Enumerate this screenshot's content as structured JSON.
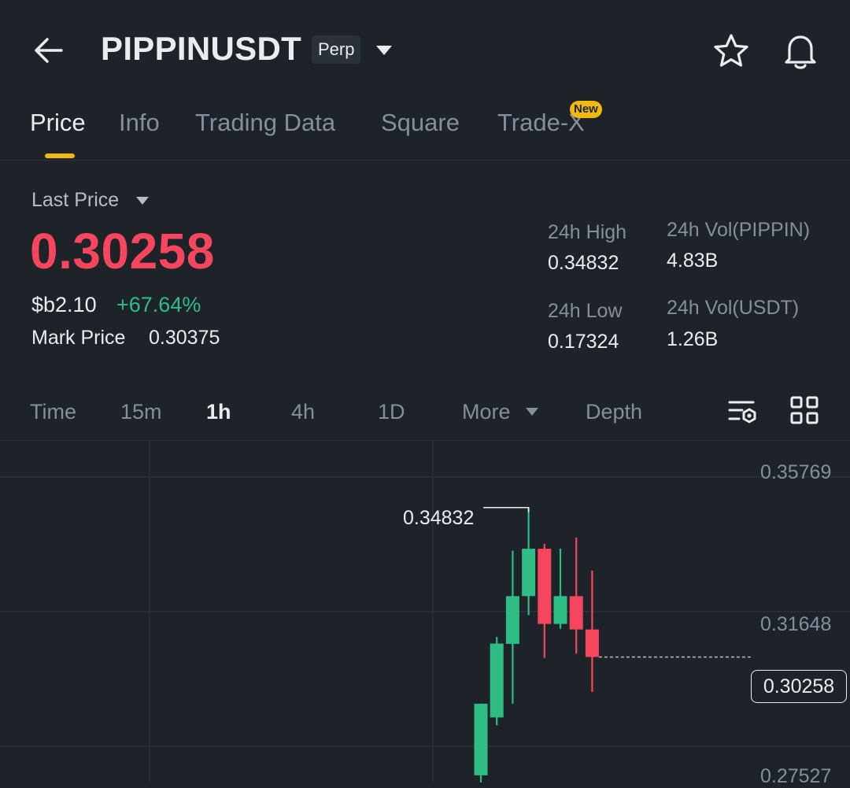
{
  "header": {
    "symbol": "PIPPINUSDT",
    "contract_type": "Perp"
  },
  "tabs": [
    {
      "label": "Price",
      "active": true
    },
    {
      "label": "Info"
    },
    {
      "label": "Trading Data"
    },
    {
      "label": "Square"
    },
    {
      "label": "Trade-X",
      "badge": "New"
    }
  ],
  "price": {
    "label": "Last Price",
    "last": "0.30258",
    "fiat": "$b2.10",
    "change": "+67.64%",
    "mark_label": "Mark Price",
    "mark_value": "0.30375"
  },
  "stats": {
    "high_label": "24h High",
    "high_value": "0.34832",
    "low_label": "24h Low",
    "low_value": "0.17324",
    "vol_base_label": "24h Vol(PIPPIN)",
    "vol_base_value": "4.83B",
    "vol_quote_label": "24h Vol(USDT)",
    "vol_quote_value": "1.26B"
  },
  "timeframes": {
    "time": "Time",
    "m15": "15m",
    "h1": "1h",
    "h4": "4h",
    "d1": "1D",
    "more": "More",
    "depth": "Depth",
    "selected": "1h"
  },
  "colors": {
    "up": "#2ebd85",
    "down": "#f6465d",
    "accent": "#f0b90b",
    "background": "#1e2329"
  },
  "icons": {
    "back": "arrow-left-icon",
    "dropdown": "caret-down-icon",
    "favorite": "star-icon",
    "alert": "bell-icon",
    "chart_settings": "chart-settings-icon",
    "layout": "grid-icon"
  },
  "chart_data": {
    "type": "candlestick",
    "interval": "1h",
    "y_axis_ticks": [
      "0.35769",
      "0.31648",
      "0.27527"
    ],
    "ylim": [
      0.2642,
      0.3687
    ],
    "high_annotation": "0.34832",
    "current_price": "0.30258",
    "candles": [
      {
        "open": 0.2664,
        "close": 0.2883,
        "high": 0.2883,
        "low": 0.2642
      },
      {
        "open": 0.2841,
        "close": 0.3067,
        "high": 0.3087,
        "low": 0.2817
      },
      {
        "open": 0.3066,
        "close": 0.3212,
        "high": 0.3351,
        "low": 0.2883
      },
      {
        "open": 0.3212,
        "close": 0.3357,
        "high": 0.3483,
        "low": 0.3154
      },
      {
        "open": 0.3357,
        "close": 0.3127,
        "high": 0.3372,
        "low": 0.3023
      },
      {
        "open": 0.3127,
        "close": 0.3212,
        "high": 0.3357,
        "low": 0.3112
      },
      {
        "open": 0.3212,
        "close": 0.311,
        "high": 0.3391,
        "low": 0.3036
      },
      {
        "open": 0.311,
        "close": 0.3026,
        "high": 0.329,
        "low": 0.2919
      }
    ]
  }
}
